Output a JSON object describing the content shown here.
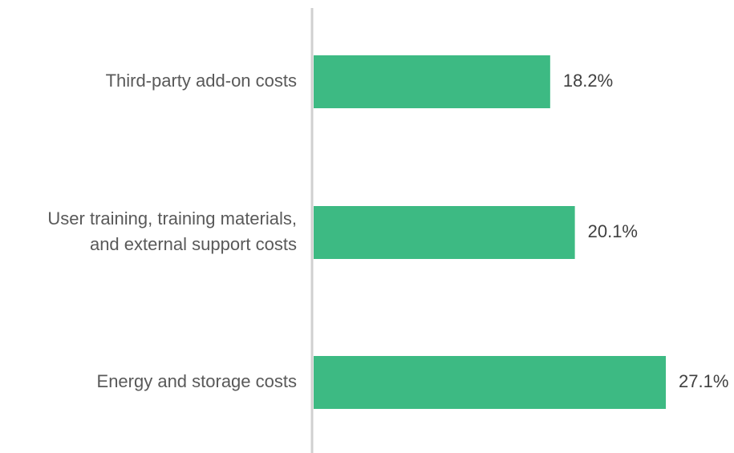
{
  "chart_data": {
    "type": "hbar",
    "categories": [
      "Third-party add-on costs",
      "User training, training materials,\nand external support costs",
      "Energy and storage costs"
    ],
    "values": [
      18.2,
      20.1,
      27.1
    ],
    "value_labels": [
      "18.2%",
      "20.1%",
      "27.1%"
    ],
    "color": "#3dba83"
  }
}
